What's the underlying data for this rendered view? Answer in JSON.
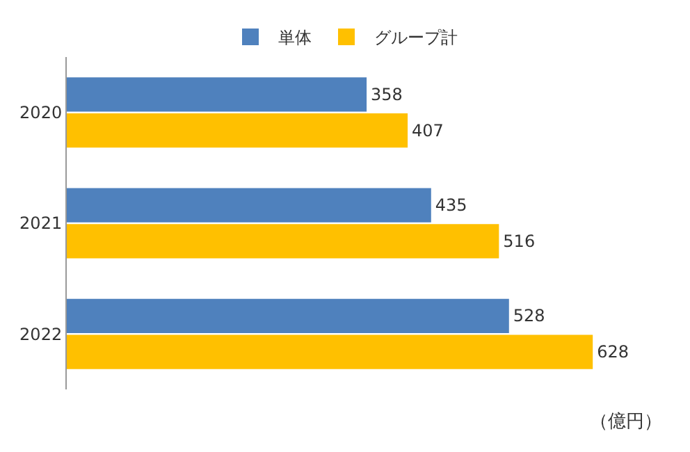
{
  "chart_data": {
    "type": "bar",
    "orientation": "horizontal",
    "categories": [
      "2020",
      "2021",
      "2022"
    ],
    "series": [
      {
        "name": "単体",
        "color": "#4f81bd",
        "values": [
          358,
          435,
          528
        ]
      },
      {
        "name": "グループ計",
        "color": "#ffc000",
        "values": [
          407,
          516,
          628
        ]
      }
    ],
    "data_labels": true,
    "legend": "top",
    "tick_labels": "y",
    "annotations": [
      "（億円）"
    ]
  }
}
